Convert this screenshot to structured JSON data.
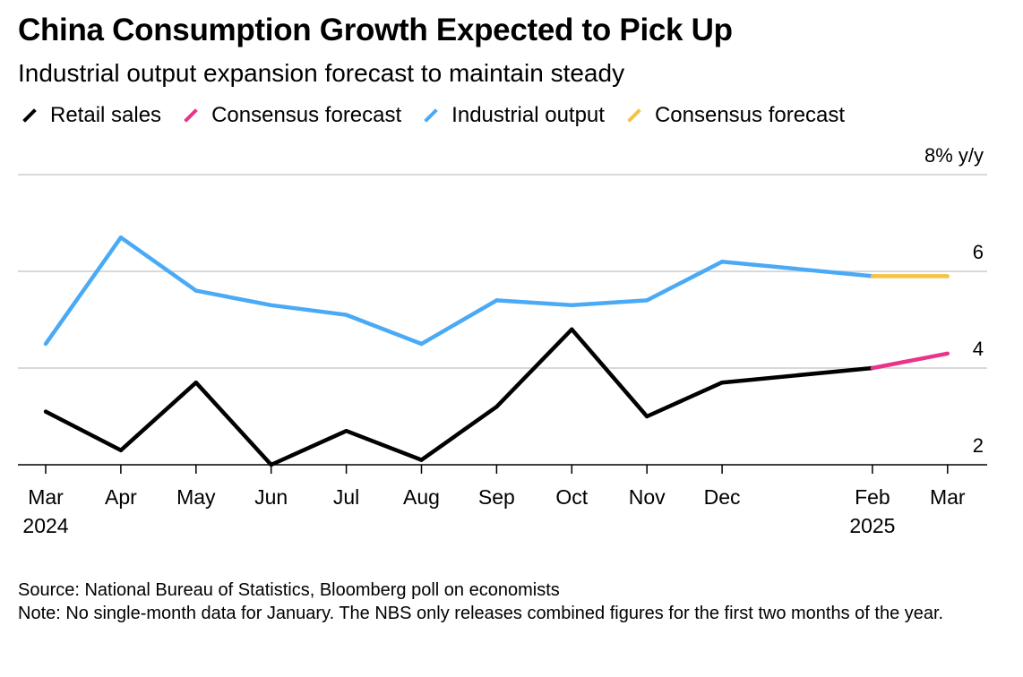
{
  "header": {
    "title": "China Consumption Growth Expected to Pick Up",
    "subtitle": "Industrial output expansion forecast to maintain steady"
  },
  "legend": [
    {
      "label": "Retail sales",
      "color": "#000000"
    },
    {
      "label": "Consensus forecast",
      "color": "#e8348a"
    },
    {
      "label": "Industrial output",
      "color": "#4aaaf5"
    },
    {
      "label": "Consensus forecast",
      "color": "#f5c242"
    }
  ],
  "footer": {
    "source": "Source: National Bureau of Statistics, Bloomberg poll on economists",
    "note": "Note: No single-month data for January. The NBS only releases combined figures for the first two months of the year."
  },
  "chart_data": {
    "type": "line",
    "x": [
      "2024-03",
      "2024-04",
      "2024-05",
      "2024-06",
      "2024-07",
      "2024-08",
      "2024-09",
      "2024-10",
      "2024-11",
      "2024-12",
      "2025-01",
      "2025-02",
      "2025-03"
    ],
    "tick_labels": [
      {
        "x": "2024-03",
        "lines": [
          "Mar",
          "2024"
        ]
      },
      {
        "x": "2024-04",
        "lines": [
          "Apr"
        ]
      },
      {
        "x": "2024-05",
        "lines": [
          "May"
        ]
      },
      {
        "x": "2024-06",
        "lines": [
          "Jun"
        ]
      },
      {
        "x": "2024-07",
        "lines": [
          "Jul"
        ]
      },
      {
        "x": "2024-08",
        "lines": [
          "Aug"
        ]
      },
      {
        "x": "2024-09",
        "lines": [
          "Sep"
        ]
      },
      {
        "x": "2024-10",
        "lines": [
          "Oct"
        ]
      },
      {
        "x": "2024-11",
        "lines": [
          "Nov"
        ]
      },
      {
        "x": "2024-12",
        "lines": [
          "Dec"
        ]
      },
      {
        "x": "2025-02",
        "lines": [
          "Feb",
          "2025"
        ]
      },
      {
        "x": "2025-03",
        "lines": [
          "Mar"
        ]
      }
    ],
    "y_ticks": [
      {
        "value": 8,
        "label": "8% y/y"
      },
      {
        "value": 6,
        "label": "6"
      },
      {
        "value": 4,
        "label": "4"
      },
      {
        "value": 2,
        "label": "2"
      }
    ],
    "ylim": [
      2,
      8
    ],
    "grid": true,
    "series": [
      {
        "name": "Retail sales",
        "color": "#000000",
        "points": [
          [
            "2024-03",
            3.1
          ],
          [
            "2024-04",
            2.3
          ],
          [
            "2024-05",
            3.7
          ],
          [
            "2024-06",
            2.0
          ],
          [
            "2024-07",
            2.7
          ],
          [
            "2024-08",
            2.1
          ],
          [
            "2024-09",
            3.2
          ],
          [
            "2024-10",
            4.8
          ],
          [
            "2024-11",
            3.0
          ],
          [
            "2024-12",
            3.7
          ],
          [
            "2025-02",
            4.0
          ]
        ]
      },
      {
        "name": "Consensus forecast",
        "color": "#e8348a",
        "points": [
          [
            "2025-02",
            4.0
          ],
          [
            "2025-03",
            4.3
          ]
        ]
      },
      {
        "name": "Industrial output",
        "color": "#4aaaf5",
        "points": [
          [
            "2024-03",
            4.5
          ],
          [
            "2024-04",
            6.7
          ],
          [
            "2024-05",
            5.6
          ],
          [
            "2024-06",
            5.3
          ],
          [
            "2024-07",
            5.1
          ],
          [
            "2024-08",
            4.5
          ],
          [
            "2024-09",
            5.4
          ],
          [
            "2024-10",
            5.3
          ],
          [
            "2024-11",
            5.4
          ],
          [
            "2024-12",
            6.2
          ],
          [
            "2025-02",
            5.9
          ]
        ]
      },
      {
        "name": "Consensus forecast",
        "color": "#f5c242",
        "points": [
          [
            "2025-02",
            5.9
          ],
          [
            "2025-03",
            5.9
          ]
        ]
      }
    ]
  }
}
